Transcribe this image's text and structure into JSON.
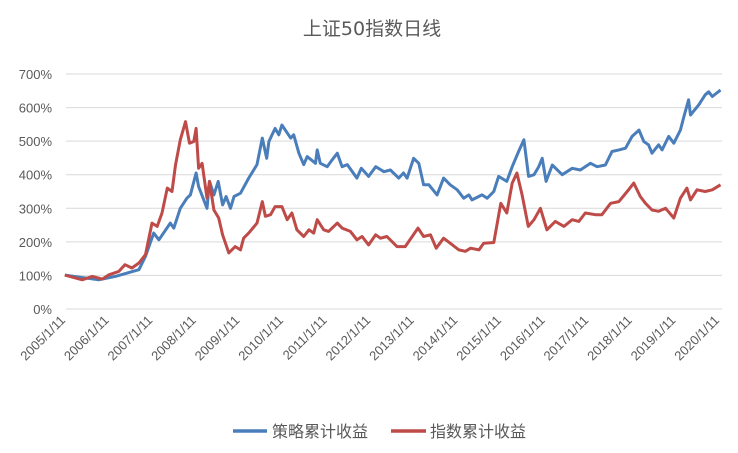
{
  "chart_data": {
    "type": "line",
    "title": "上证50指数日线",
    "xlabel": "",
    "ylabel": "",
    "ylim": [
      0,
      700
    ],
    "yticks": [
      "0%",
      "100%",
      "200%",
      "300%",
      "400%",
      "500%",
      "600%",
      "700%"
    ],
    "xticks": [
      "2005/1/11",
      "2006/1/11",
      "2007/1/11",
      "2008/1/11",
      "2009/1/11",
      "2010/1/11",
      "2011/1/11",
      "2012/1/11",
      "2013/1/11",
      "2014/1/11",
      "2015/1/11",
      "2016/1/11",
      "2017/1/11",
      "2018/1/11",
      "2019/1/11",
      "2020/1/11"
    ],
    "grid": "horizontal",
    "legend_position": "bottom",
    "series": [
      {
        "name": "策略累计收益",
        "color": "#4a7ebb",
        "points": [
          [
            "2005-01-01",
            101
          ],
          [
            "2005-10-12",
            87
          ],
          [
            "2006-02-28",
            97
          ],
          [
            "2006-09-13",
            117
          ],
          [
            "2006-11-07",
            157
          ],
          [
            "2007-01-15",
            226
          ],
          [
            "2007-02-28",
            206
          ],
          [
            "2007-06-02",
            256
          ],
          [
            "2007-07-01",
            241
          ],
          [
            "2007-08-25",
            300
          ],
          [
            "2007-10-19",
            330
          ],
          [
            "2007-11-18",
            340
          ],
          [
            "2008-01-05",
            405
          ],
          [
            "2008-01-26",
            365
          ],
          [
            "2008-04-05",
            300
          ],
          [
            "2008-04-26",
            380
          ],
          [
            "2008-06-02",
            340
          ],
          [
            "2008-07-08",
            380
          ],
          [
            "2008-08-14",
            310
          ],
          [
            "2008-09-13",
            335
          ],
          [
            "2008-10-19",
            300
          ],
          [
            "2008-11-18",
            335
          ],
          [
            "2009-01-12",
            345
          ],
          [
            "2009-03-20",
            390
          ],
          [
            "2009-05-28",
            430
          ],
          [
            "2009-07-12",
            509
          ],
          [
            "2009-08-18",
            449
          ],
          [
            "2009-09-06",
            499
          ],
          [
            "2009-10-28",
            538
          ],
          [
            "2009-11-28",
            519
          ],
          [
            "2009-12-24",
            548
          ],
          [
            "2010-03-06",
            509
          ],
          [
            "2010-04-01",
            519
          ],
          [
            "2010-05-14",
            464
          ],
          [
            "2010-06-24",
            430
          ],
          [
            "2010-07-23",
            454
          ],
          [
            "2010-10-01",
            434
          ],
          [
            "2010-10-15",
            474
          ],
          [
            "2010-11-11",
            434
          ],
          [
            "2011-01-08",
            424
          ],
          [
            "2011-02-18",
            444
          ],
          [
            "2011-04-01",
            464
          ],
          [
            "2011-05-11",
            424
          ],
          [
            "2011-06-24",
            430
          ],
          [
            "2011-09-13",
            390
          ],
          [
            "2011-10-19",
            419
          ],
          [
            "2011-12-20",
            395
          ],
          [
            "2012-02-18",
            424
          ],
          [
            "2012-04-26",
            409
          ],
          [
            "2012-06-20",
            414
          ],
          [
            "2012-08-28",
            390
          ],
          [
            "2012-10-08",
            405
          ],
          [
            "2012-11-07",
            390
          ],
          [
            "2013-01-01",
            449
          ],
          [
            "2013-02-14",
            434
          ],
          [
            "2013-03-24",
            370
          ],
          [
            "2013-05-07",
            370
          ],
          [
            "2013-07-15",
            340
          ],
          [
            "2013-09-09",
            390
          ],
          [
            "2013-11-03",
            370
          ],
          [
            "2014-01-01",
            355
          ],
          [
            "2014-02-25",
            330
          ],
          [
            "2014-04-08",
            340
          ],
          [
            "2014-05-03",
            325
          ],
          [
            "2014-07-26",
            340
          ],
          [
            "2014-09-09",
            330
          ],
          [
            "2014-11-03",
            350
          ],
          [
            "2014-12-13",
            395
          ],
          [
            "2015-02-21",
            380
          ],
          [
            "2015-04-05",
            424
          ],
          [
            "2015-05-28",
            469
          ],
          [
            "2015-07-12",
            504
          ],
          [
            "2015-08-21",
            395
          ],
          [
            "2015-10-05",
            400
          ],
          [
            "2015-11-14",
            424
          ],
          [
            "2015-12-13",
            449
          ],
          [
            "2016-01-15",
            380
          ],
          [
            "2016-03-06",
            429
          ],
          [
            "2016-05-28",
            400
          ],
          [
            "2016-08-21",
            419
          ],
          [
            "2016-10-28",
            414
          ],
          [
            "2017-01-22",
            434
          ],
          [
            "2017-03-16",
            424
          ],
          [
            "2017-05-25",
            429
          ],
          [
            "2017-07-19",
            469
          ],
          [
            "2017-09-16",
            474
          ],
          [
            "2017-11-11",
            479
          ],
          [
            "2018-01-05",
            514
          ],
          [
            "2018-03-02",
            533
          ],
          [
            "2018-04-12",
            499
          ],
          [
            "2018-05-21",
            489
          ],
          [
            "2018-06-20",
            464
          ],
          [
            "2018-08-14",
            489
          ],
          [
            "2018-09-13",
            474
          ],
          [
            "2018-11-07",
            514
          ],
          [
            "2018-12-20",
            494
          ],
          [
            "2019-02-14",
            533
          ],
          [
            "2019-03-13",
            573
          ],
          [
            "2019-04-22",
            623
          ],
          [
            "2019-05-07",
            578
          ],
          [
            "2019-07-15",
            608
          ],
          [
            "2019-09-09",
            638
          ],
          [
            "2019-10-08",
            647
          ],
          [
            "2019-11-07",
            633
          ],
          [
            "2020-01-15",
            652
          ]
        ]
      },
      {
        "name": "指数累计收益",
        "color": "#be4b48",
        "points": [
          [
            "2005-01-01",
            101
          ],
          [
            "2005-05-25",
            87
          ],
          [
            "2005-08-18",
            97
          ],
          [
            "2005-11-11",
            89
          ],
          [
            "2006-01-05",
            102
          ],
          [
            "2006-03-27",
            112
          ],
          [
            "2006-05-18",
            132
          ],
          [
            "2006-07-15",
            122
          ],
          [
            "2006-09-13",
            137
          ],
          [
            "2006-11-07",
            162
          ],
          [
            "2007-01-01",
            256
          ],
          [
            "2007-02-14",
            246
          ],
          [
            "2007-03-24",
            286
          ],
          [
            "2007-05-07",
            360
          ],
          [
            "2007-06-16",
            350
          ],
          [
            "2007-07-15",
            429
          ],
          [
            "2007-08-25",
            504
          ],
          [
            "2007-10-08",
            558
          ],
          [
            "2007-11-11",
            494
          ],
          [
            "2007-12-16",
            499
          ],
          [
            "2008-01-05",
            538
          ],
          [
            "2008-01-26",
            419
          ],
          [
            "2008-02-25",
            434
          ],
          [
            "2008-04-05",
            330
          ],
          [
            "2008-04-26",
            380
          ],
          [
            "2008-06-02",
            295
          ],
          [
            "2008-07-12",
            271
          ],
          [
            "2008-08-14",
            221
          ],
          [
            "2008-10-05",
            167
          ],
          [
            "2008-11-28",
            186
          ],
          [
            "2009-01-12",
            176
          ],
          [
            "2009-02-07",
            211
          ],
          [
            "2009-03-20",
            226
          ],
          [
            "2009-05-28",
            256
          ],
          [
            "2009-07-12",
            320
          ],
          [
            "2009-08-07",
            276
          ],
          [
            "2009-09-20",
            281
          ],
          [
            "2009-10-28",
            305
          ],
          [
            "2009-12-24",
            305
          ],
          [
            "2010-02-07",
            266
          ],
          [
            "2010-03-16",
            286
          ],
          [
            "2010-04-28",
            236
          ],
          [
            "2010-06-24",
            216
          ],
          [
            "2010-08-07",
            236
          ],
          [
            "2010-09-16",
            226
          ],
          [
            "2010-10-15",
            266
          ],
          [
            "2010-12-09",
            236
          ],
          [
            "2011-01-19",
            231
          ],
          [
            "2011-04-01",
            256
          ],
          [
            "2011-05-11",
            241
          ],
          [
            "2011-07-19",
            231
          ],
          [
            "2011-09-13",
            206
          ],
          [
            "2011-10-26",
            216
          ],
          [
            "2011-12-20",
            191
          ],
          [
            "2012-02-18",
            221
          ],
          [
            "2012-03-27",
            211
          ],
          [
            "2012-05-21",
            216
          ],
          [
            "2012-08-14",
            186
          ],
          [
            "2012-10-22",
            186
          ],
          [
            "2012-12-20",
            216
          ],
          [
            "2013-02-07",
            241
          ],
          [
            "2013-03-24",
            216
          ],
          [
            "2013-05-21",
            221
          ],
          [
            "2013-07-08",
            181
          ],
          [
            "2013-09-09",
            211
          ],
          [
            "2013-11-03",
            196
          ],
          [
            "2014-01-15",
            176
          ],
          [
            "2014-03-09",
            172
          ],
          [
            "2014-04-22",
            181
          ],
          [
            "2014-07-01",
            176
          ],
          [
            "2014-08-10",
            196
          ],
          [
            "2014-11-03",
            198
          ],
          [
            "2015-01-01",
            315
          ],
          [
            "2015-02-21",
            286
          ],
          [
            "2015-04-05",
            375
          ],
          [
            "2015-05-14",
            405
          ],
          [
            "2015-06-27",
            340
          ],
          [
            "2015-08-18",
            246
          ],
          [
            "2015-10-05",
            266
          ],
          [
            "2015-11-28",
            300
          ],
          [
            "2016-01-22",
            236
          ],
          [
            "2016-04-01",
            261
          ],
          [
            "2016-06-13",
            246
          ],
          [
            "2016-08-21",
            266
          ],
          [
            "2016-10-15",
            261
          ],
          [
            "2016-12-09",
            286
          ],
          [
            "2017-03-02",
            281
          ],
          [
            "2017-04-26",
            281
          ],
          [
            "2017-07-08",
            315
          ],
          [
            "2017-09-16",
            320
          ],
          [
            "2017-11-25",
            350
          ],
          [
            "2018-01-19",
            375
          ],
          [
            "2018-03-13",
            335
          ],
          [
            "2018-04-26",
            315
          ],
          [
            "2018-06-20",
            295
          ],
          [
            "2018-08-14",
            291
          ],
          [
            "2018-10-12",
            300
          ],
          [
            "2018-12-20",
            271
          ],
          [
            "2019-02-14",
            330
          ],
          [
            "2019-04-08",
            360
          ],
          [
            "2019-05-07",
            325
          ],
          [
            "2019-07-01",
            355
          ],
          [
            "2019-09-09",
            350
          ],
          [
            "2019-11-07",
            355
          ],
          [
            "2020-01-15",
            370
          ]
        ]
      }
    ]
  }
}
